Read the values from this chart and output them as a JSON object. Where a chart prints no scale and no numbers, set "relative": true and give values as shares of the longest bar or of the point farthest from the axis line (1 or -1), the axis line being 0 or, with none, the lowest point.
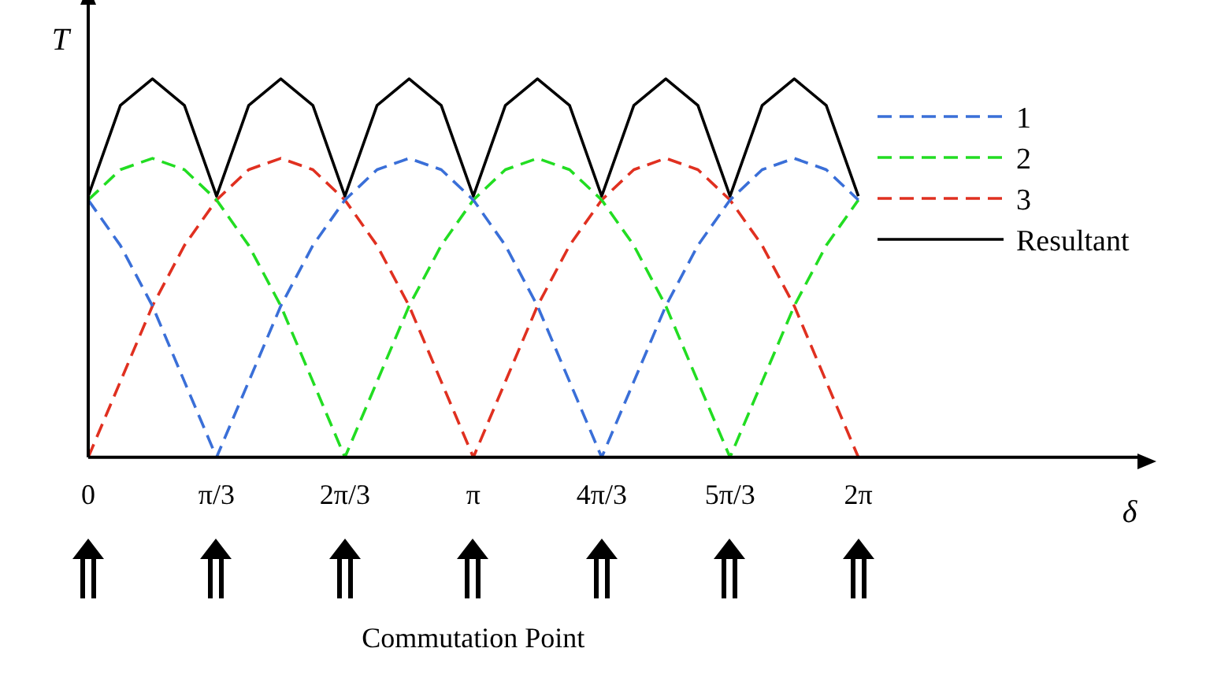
{
  "chart_data": {
    "type": "line",
    "relative": true,
    "xlabel": "δ",
    "ylabel": "T",
    "x": [
      0,
      0.262,
      0.524,
      0.785,
      1.047,
      1.309,
      1.571,
      1.833,
      2.094,
      2.356,
      2.618,
      2.88,
      3.142,
      3.403,
      3.665,
      3.927,
      4.189,
      4.451,
      4.712,
      4.974,
      5.236,
      5.498,
      5.76,
      6.021,
      6.283
    ],
    "xlim": [
      0,
      8.56
    ],
    "xticks": [
      0,
      {
        "value": 1.047,
        "label": "π/3"
      },
      {
        "value": 2.094,
        "label": "2π/3"
      },
      {
        "value": 3.142,
        "label": "π"
      },
      {
        "value": 4.189,
        "label": "4π/3"
      },
      {
        "value": 5.236,
        "label": "5π/3"
      },
      {
        "value": 6.283,
        "label": "2π"
      }
    ],
    "tick_labels": "x",
    "grid": false,
    "legend": "top right",
    "marker": "none",
    "series": [
      {
        "name": "1",
        "color": "#3a6fd8",
        "line_style": "dashed",
        "values": [
          0.68,
          0.56,
          0.4,
          0.2,
          0,
          0.2,
          0.4,
          0.56,
          0.68,
          0.76,
          0.79,
          0.76,
          0.68,
          0.56,
          0.4,
          0.2,
          0,
          0.2,
          0.4,
          0.56,
          0.68,
          0.76,
          0.79,
          0.76,
          0.68
        ]
      },
      {
        "name": "2",
        "color": "#22dd22",
        "line_style": "dashed",
        "values": [
          0.68,
          0.76,
          0.79,
          0.76,
          0.68,
          0.56,
          0.4,
          0.2,
          0,
          0.2,
          0.4,
          0.56,
          0.68,
          0.76,
          0.79,
          0.76,
          0.68,
          0.56,
          0.4,
          0.2,
          0,
          0.2,
          0.4,
          0.56,
          0.68
        ]
      },
      {
        "name": "3",
        "color": "#e03020",
        "line_style": "dashed",
        "values": [
          0,
          0.2,
          0.4,
          0.56,
          0.68,
          0.76,
          0.79,
          0.76,
          0.68,
          0.56,
          0.4,
          0.2,
          0,
          0.2,
          0.4,
          0.56,
          0.68,
          0.76,
          0.79,
          0.76,
          0.68,
          0.56,
          0.4,
          0.2,
          0
        ]
      },
      {
        "name": "Resultant",
        "color": "#000000",
        "line_style": "solid",
        "values": [
          0.69,
          0.93,
          1,
          0.93,
          0.69,
          0.93,
          1,
          0.93,
          0.69,
          0.93,
          1,
          0.93,
          0.69,
          0.93,
          1,
          0.93,
          0.69,
          0.93,
          1,
          0.93,
          0.69,
          0.93,
          1,
          0.93,
          0.69
        ]
      }
    ],
    "annotations": [
      "Commutation Point"
    ]
  }
}
